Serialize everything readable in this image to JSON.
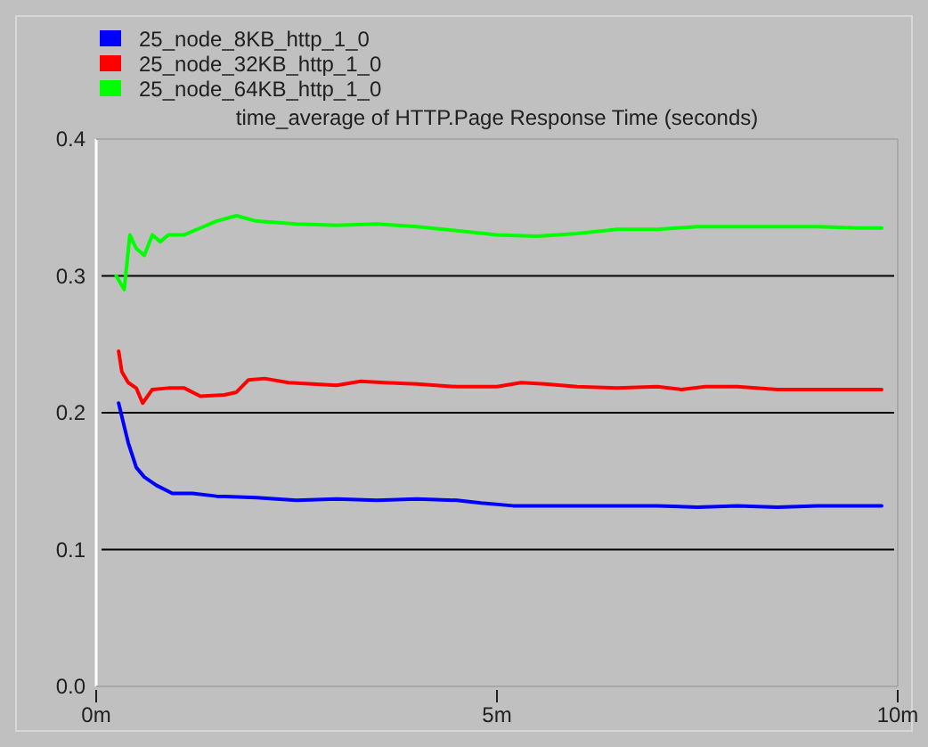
{
  "chart_data": {
    "type": "line",
    "title": "time_average of HTTP.Page Response Time (seconds)",
    "xlim": [
      0,
      10
    ],
    "xticks": [
      {
        "value": 0,
        "label": "0m"
      },
      {
        "value": 5,
        "label": "5m"
      },
      {
        "value": 10,
        "label": "10m"
      }
    ],
    "ylim": [
      0,
      0.4
    ],
    "yticks": [
      {
        "value": 0,
        "label": "0.0"
      },
      0.1,
      0.2,
      0.3,
      0.4
    ],
    "grid": "y",
    "legend": "top left",
    "marker": "none",
    "line_style": "solid",
    "series": [
      {
        "name": "25_node_8KB_http_1_0",
        "color": "#0000ff",
        "x": [
          0.28,
          0.35,
          0.4,
          0.5,
          0.6,
          0.75,
          0.95,
          1.2,
          1.5,
          2.0,
          2.5,
          3.0,
          3.5,
          4.0,
          4.5,
          4.8,
          5.2,
          6.0,
          7.0,
          7.5,
          8.0,
          8.5,
          9.0,
          9.8
        ],
        "values": [
          0.207,
          0.19,
          0.178,
          0.16,
          0.153,
          0.147,
          0.141,
          0.141,
          0.139,
          0.138,
          0.136,
          0.137,
          0.136,
          0.137,
          0.136,
          0.134,
          0.132,
          0.132,
          0.132,
          0.131,
          0.132,
          0.131,
          0.132,
          0.132
        ]
      },
      {
        "name": "25_node_32KB_http_1_0",
        "color": "#ff0000",
        "x": [
          0.28,
          0.32,
          0.4,
          0.5,
          0.58,
          0.7,
          0.9,
          1.1,
          1.3,
          1.6,
          1.75,
          1.9,
          2.1,
          2.4,
          2.7,
          3.0,
          3.3,
          3.6,
          4.0,
          4.5,
          5.0,
          5.3,
          5.6,
          6.0,
          6.5,
          7.0,
          7.3,
          7.6,
          8.0,
          8.5,
          9.0,
          9.8
        ],
        "values": [
          0.245,
          0.23,
          0.222,
          0.218,
          0.207,
          0.217,
          0.218,
          0.218,
          0.212,
          0.213,
          0.215,
          0.224,
          0.225,
          0.222,
          0.221,
          0.22,
          0.223,
          0.222,
          0.221,
          0.219,
          0.219,
          0.222,
          0.221,
          0.219,
          0.218,
          0.219,
          0.217,
          0.219,
          0.219,
          0.217,
          0.217,
          0.217
        ]
      },
      {
        "name": "25_node_64KB_http_1_0",
        "color": "#00ff00",
        "x": [
          0.25,
          0.3,
          0.35,
          0.42,
          0.5,
          0.6,
          0.7,
          0.8,
          0.9,
          1.1,
          1.3,
          1.5,
          1.75,
          2.0,
          2.5,
          3.0,
          3.5,
          4.0,
          4.5,
          5.0,
          5.5,
          6.0,
          6.5,
          7.0,
          7.5,
          8.0,
          8.5,
          9.0,
          9.5,
          9.8
        ],
        "values": [
          0.3,
          0.295,
          0.29,
          0.33,
          0.32,
          0.315,
          0.33,
          0.325,
          0.33,
          0.33,
          0.335,
          0.34,
          0.344,
          0.34,
          0.338,
          0.337,
          0.338,
          0.336,
          0.333,
          0.33,
          0.329,
          0.331,
          0.334,
          0.334,
          0.336,
          0.336,
          0.336,
          0.336,
          0.335,
          0.335
        ]
      }
    ]
  }
}
